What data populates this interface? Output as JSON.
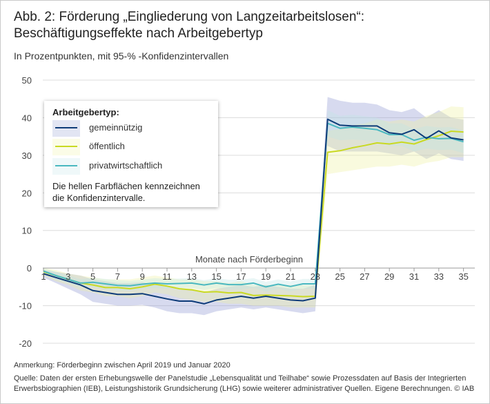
{
  "header": {
    "title_line1": "Abb. 2: Förderung „Eingliederung von Langzeitarbeitslosen“:",
    "title_line2": "Beschäftigungseffekte nach Arbeitgebertyp",
    "subtitle": "In Prozentpunkten, mit 95-% -Konfidenzintervallen"
  },
  "legend": {
    "title": "Arbeitgebertyp:",
    "note_line1": "Die hellen Farbflächen kennzeichnen",
    "note_line2": "die Konfidenzintervalle."
  },
  "footer": {
    "note": "Anmerkung: Förderbeginn zwischen April 2019 und Januar 2020",
    "source_line1": "Quelle: Daten der ersten Erhebungswelle der Panelstudie „Lebensqualität und Teilhabe“ sowie Prozessdaten auf Basis der Integrierten",
    "source_line2": "Erwerbsbiographien (IEB), Leistungshistorik Grundsicherung (LHG) sowie weiterer administrativer Quellen. Eigene Berechnungen. © IAB"
  },
  "chart_data": {
    "type": "line",
    "xlabel": "Monate nach Förderbeginn",
    "ylabel": "",
    "xlim": [
      1,
      35
    ],
    "ylim": [
      -20,
      50
    ],
    "yticks": [
      -20,
      -10,
      0,
      10,
      20,
      30,
      40,
      50
    ],
    "xticks": [
      1,
      3,
      5,
      7,
      9,
      11,
      13,
      15,
      17,
      19,
      21,
      23,
      25,
      27,
      29,
      31,
      33,
      35
    ],
    "grid": "horizontal",
    "legend_position": "top-left",
    "x": [
      1,
      2,
      3,
      4,
      5,
      6,
      7,
      8,
      9,
      10,
      11,
      12,
      13,
      14,
      15,
      16,
      17,
      18,
      19,
      20,
      21,
      22,
      23,
      24,
      25,
      26,
      27,
      28,
      29,
      30,
      31,
      32,
      33,
      34,
      35
    ],
    "series": [
      {
        "name": "gemeinnützig",
        "color": "#0d3b78",
        "band_color": "#8c96d0",
        "values": [
          -1.5,
          -2.5,
          -3.5,
          -4.5,
          -6,
          -6.5,
          -7,
          -7,
          -6.8,
          -7.5,
          -8.2,
          -8.8,
          -8.8,
          -9.5,
          -8.5,
          -8,
          -7.5,
          -8,
          -7.5,
          -8,
          -8.5,
          -8.7,
          -8,
          39.6,
          38,
          37.8,
          37.8,
          37.8,
          36,
          35.6,
          36.8,
          34.5,
          36.5,
          34.6,
          34.1
        ],
        "ci_low": [
          -2.5,
          -4,
          -5.5,
          -7,
          -9,
          -9.5,
          -10,
          -10,
          -9.8,
          -10.5,
          -11.5,
          -12,
          -12,
          -12.5,
          -11.5,
          -11,
          -10.5,
          -11,
          -10.5,
          -11,
          -11.5,
          -12,
          -11.5,
          32.5,
          31,
          31,
          31,
          31,
          30.5,
          30,
          31,
          29,
          30.5,
          29,
          28.5
        ],
        "ci_high": [
          -0.5,
          -1,
          -1.5,
          -2,
          -3,
          -3.5,
          -4,
          -4,
          -3.8,
          -4.5,
          -5,
          -5.5,
          -5.5,
          -6.5,
          -5.5,
          -5,
          -4.5,
          -5,
          -4.5,
          -5,
          -5.5,
          -5.5,
          -4.5,
          45.5,
          44.5,
          44,
          44,
          43.5,
          42,
          41.5,
          42.5,
          40,
          42,
          40,
          39.5
        ]
      },
      {
        "name": "öffentlich",
        "color": "#c9d922",
        "band_color": "#eef2a0",
        "values": [
          -1,
          -2,
          -3,
          -4,
          -4.5,
          -5.2,
          -5.2,
          -5.5,
          -5,
          -4.3,
          -4.8,
          -5.5,
          -5.8,
          -6.4,
          -6.3,
          -6.6,
          -6.5,
          -7.3,
          -7.2,
          -7.3,
          -7.4,
          -7.6,
          -7.5,
          30.8,
          31.2,
          32,
          32.6,
          33.3,
          33,
          33.5,
          33,
          34.2,
          35.2,
          36.4,
          36.2
        ],
        "ci_low": [
          -2,
          -3.5,
          -4.5,
          -6,
          -6.5,
          -7.5,
          -7.5,
          -8,
          -7.5,
          -6.5,
          -7,
          -8,
          -8.5,
          -9,
          -9,
          -9.5,
          -9.5,
          -10,
          -10,
          -10,
          -10.5,
          -10.5,
          -10.5,
          25,
          25.5,
          26,
          26.5,
          27,
          27,
          27.5,
          27,
          28,
          28.5,
          29.5,
          29.5
        ],
        "ci_high": [
          0,
          -0.5,
          -1.5,
          -2,
          -2.5,
          -3,
          -3,
          -3,
          -2.5,
          -2,
          -2.5,
          -3,
          -3,
          -3.5,
          -3.5,
          -4,
          -3.5,
          -4.5,
          -4.5,
          -4.5,
          -4.5,
          -4.5,
          -4.5,
          36.5,
          37,
          38,
          38.5,
          39.5,
          39,
          39.5,
          39,
          40.5,
          41.5,
          43,
          42.8
        ]
      },
      {
        "name": "privatwirtschaftlich",
        "color": "#4ab8c0",
        "band_color": "#bfe4e6",
        "values": [
          -0.8,
          -2,
          -3,
          -4,
          -3.8,
          -4.2,
          -4.6,
          -4.7,
          -4.3,
          -4,
          -4.2,
          -4.1,
          -4.0,
          -4.5,
          -4.0,
          -4.4,
          -4.4,
          -4.0,
          -5.0,
          -4.3,
          -4.9,
          -4.2,
          -4.2,
          38.5,
          37.2,
          37.5,
          37.2,
          36.8,
          35.5,
          35.5,
          34.0,
          34.8,
          34.4,
          34.5,
          33.6
        ],
        "ci_low": [
          -1.5,
          -3,
          -4,
          -5,
          -5,
          -5.5,
          -6,
          -6,
          -5.5,
          -5.3,
          -5.5,
          -5.4,
          -5.3,
          -5.8,
          -5.3,
          -5.7,
          -5.7,
          -5.3,
          -6.3,
          -5.6,
          -6.2,
          -5.5,
          -5.5,
          35,
          34,
          34.2,
          34,
          33.6,
          32.5,
          32.5,
          31,
          31.8,
          31.4,
          31.5,
          30.6
        ],
        "ci_high": [
          0,
          -1,
          -2,
          -3,
          -2.6,
          -2.9,
          -3.2,
          -3.4,
          -3.1,
          -2.7,
          -2.9,
          -2.8,
          -2.7,
          -3.2,
          -2.7,
          -3.1,
          -3.1,
          -2.7,
          -3.7,
          -3,
          -3.6,
          -2.9,
          -2.9,
          42,
          40.5,
          40.8,
          40.4,
          40,
          38.5,
          38.5,
          37,
          37.8,
          37.4,
          37.5,
          36.6
        ]
      }
    ]
  }
}
